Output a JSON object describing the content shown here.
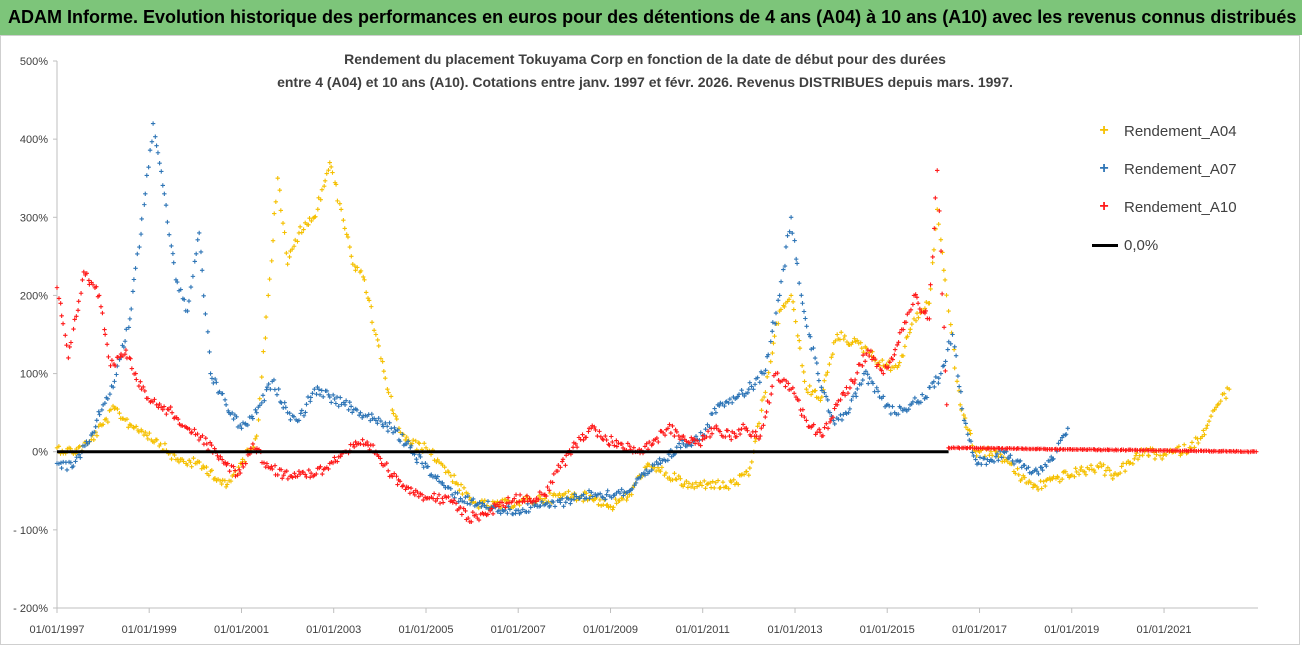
{
  "header": {
    "banner_title": "ADAM Informe. Evolution historique des performances en euros pour des détentions de 4 ans (A04) à 10 ans (A10) avec les revenus connus distribués"
  },
  "chart_data": {
    "type": "scatter",
    "title_line1": "Rendement du placement Tokuyama Corp en fonction de la date de début pour des durées",
    "title_line2": "entre 4 (A04) et 10 ans (A10). Cotations entre janv. 1997 et févr. 2026. Revenus DISTRIBUES depuis mars. 1997.",
    "xlim": [
      "1997-01-01",
      "2023-01-15"
    ],
    "ylim": [
      -200,
      500
    ],
    "y_ticks": [
      -200,
      -100,
      0,
      100,
      200,
      300,
      400,
      500
    ],
    "y_tick_labels": [
      "- 200%",
      "- 100%",
      "0%",
      "100%",
      "200%",
      "300%",
      "400%",
      "500%"
    ],
    "x_tick_labels": [
      "01/01/1997",
      "01/01/1999",
      "01/01/2001",
      "01/01/2003",
      "01/01/2005",
      "01/01/2007",
      "01/01/2009",
      "01/01/2011",
      "01/01/2013",
      "01/01/2015",
      "01/01/2017",
      "01/01/2019",
      "01/01/2021"
    ],
    "grid": false,
    "legend_position": "top-right",
    "series": [
      {
        "name": "Rendement_A04",
        "color": "#f5c000",
        "marker": "+",
        "points": [
          [
            "1997-01-01",
            5
          ],
          [
            "1997-05-01",
            0
          ],
          [
            "1997-09-01",
            10
          ],
          [
            "1998-01-01",
            35
          ],
          [
            "1998-04-01",
            55
          ],
          [
            "1998-08-01",
            35
          ],
          [
            "1998-12-01",
            25
          ],
          [
            "1999-04-01",
            10
          ],
          [
            "1999-08-01",
            -10
          ],
          [
            "2000-01-01",
            -15
          ],
          [
            "2000-05-01",
            -25
          ],
          [
            "2000-09-01",
            -45
          ],
          [
            "2001-01-01",
            -15
          ],
          [
            "2001-05-01",
            20
          ],
          [
            "2001-08-01",
            200
          ],
          [
            "2001-10-15",
            350
          ],
          [
            "2002-01-01",
            240
          ],
          [
            "2002-04-01",
            280
          ],
          [
            "2002-08-01",
            300
          ],
          [
            "2002-12-01",
            370
          ],
          [
            "2003-03-01",
            310
          ],
          [
            "2003-06-01",
            240
          ],
          [
            "2003-09-01",
            220
          ],
          [
            "2003-12-01",
            150
          ],
          [
            "2004-03-01",
            80
          ],
          [
            "2004-06-01",
            30
          ],
          [
            "2004-09-01",
            10
          ],
          [
            "2005-01-01",
            5
          ],
          [
            "2005-05-01",
            -15
          ],
          [
            "2005-09-01",
            -40
          ],
          [
            "2006-01-01",
            -65
          ],
          [
            "2006-06-01",
            -70
          ],
          [
            "2007-01-01",
            -65
          ],
          [
            "2007-08-01",
            -60
          ],
          [
            "2008-03-01",
            -55
          ],
          [
            "2008-09-01",
            -60
          ],
          [
            "2009-01-01",
            -70
          ],
          [
            "2009-06-01",
            -55
          ],
          [
            "2009-10-01",
            -20
          ],
          [
            "2010-02-01",
            -25
          ],
          [
            "2010-06-01",
            -35
          ],
          [
            "2010-10-01",
            -45
          ],
          [
            "2011-03-01",
            -40
          ],
          [
            "2011-07-01",
            -45
          ],
          [
            "2012-01-01",
            -30
          ],
          [
            "2012-05-01",
            70
          ],
          [
            "2012-09-01",
            180
          ],
          [
            "2012-12-01",
            200
          ],
          [
            "2013-04-01",
            80
          ],
          [
            "2013-08-01",
            70
          ],
          [
            "2013-12-01",
            150
          ],
          [
            "2014-04-01",
            140
          ],
          [
            "2014-08-01",
            130
          ],
          [
            "2014-12-01",
            110
          ],
          [
            "2015-04-01",
            110
          ],
          [
            "2015-08-01",
            170
          ],
          [
            "2015-12-01",
            190
          ],
          [
            "2016-02-01",
            310
          ],
          [
            "2016-05-01",
            180
          ],
          [
            "2016-08-01",
            60
          ],
          [
            "2016-12-01",
            0
          ],
          [
            "2017-04-01",
            0
          ],
          [
            "2017-08-01",
            -10
          ],
          [
            "2017-12-01",
            -35
          ],
          [
            "2018-04-01",
            -45
          ],
          [
            "2018-08-01",
            -35
          ],
          [
            "2018-12-01",
            -30
          ],
          [
            "2019-04-01",
            -25
          ],
          [
            "2019-08-01",
            -20
          ],
          [
            "2019-12-01",
            -30
          ],
          [
            "2020-04-01",
            -15
          ],
          [
            "2020-08-01",
            0
          ],
          [
            "2020-12-01",
            -5
          ],
          [
            "2021-04-01",
            0
          ],
          [
            "2021-08-01",
            5
          ],
          [
            "2021-12-01",
            30
          ],
          [
            "2022-03-01",
            60
          ],
          [
            "2022-06-01",
            80
          ]
        ]
      },
      {
        "name": "Rendement_A07",
        "color": "#2e75b6",
        "marker": "+",
        "points": [
          [
            "1997-01-01",
            -15
          ],
          [
            "1997-05-01",
            -20
          ],
          [
            "1997-09-01",
            10
          ],
          [
            "1998-01-01",
            60
          ],
          [
            "1998-04-01",
            90
          ],
          [
            "1998-08-01",
            170
          ],
          [
            "1998-12-01",
            330
          ],
          [
            "1999-02-01",
            420
          ],
          [
            "1999-05-01",
            330
          ],
          [
            "1999-08-01",
            220
          ],
          [
            "1999-11-01",
            180
          ],
          [
            "2000-02-01",
            280
          ],
          [
            "2000-05-01",
            100
          ],
          [
            "2000-09-01",
            60
          ],
          [
            "2001-01-01",
            30
          ],
          [
            "2001-05-01",
            50
          ],
          [
            "2001-09-01",
            90
          ],
          [
            "2002-01-01",
            50
          ],
          [
            "2002-04-01",
            40
          ],
          [
            "2002-08-01",
            80
          ],
          [
            "2002-12-01",
            70
          ],
          [
            "2003-04-01",
            60
          ],
          [
            "2003-08-01",
            50
          ],
          [
            "2003-12-01",
            40
          ],
          [
            "2004-04-01",
            30
          ],
          [
            "2004-08-01",
            10
          ],
          [
            "2004-12-01",
            -15
          ],
          [
            "2005-05-01",
            -40
          ],
          [
            "2005-10-01",
            -60
          ],
          [
            "2006-03-01",
            -65
          ],
          [
            "2006-08-01",
            -75
          ],
          [
            "2007-01-01",
            -75
          ],
          [
            "2007-06-01",
            -70
          ],
          [
            "2007-12-01",
            -65
          ],
          [
            "2008-06-01",
            -55
          ],
          [
            "2008-12-01",
            -55
          ],
          [
            "2009-06-01",
            -50
          ],
          [
            "2009-10-01",
            -30
          ],
          [
            "2010-03-01",
            -10
          ],
          [
            "2010-08-01",
            10
          ],
          [
            "2011-01-01",
            20
          ],
          [
            "2011-05-01",
            60
          ],
          [
            "2011-09-01",
            70
          ],
          [
            "2012-01-01",
            80
          ],
          [
            "2012-05-01",
            100
          ],
          [
            "2012-09-01",
            200
          ],
          [
            "2012-12-01",
            300
          ],
          [
            "2013-03-01",
            190
          ],
          [
            "2013-07-01",
            100
          ],
          [
            "2013-11-01",
            40
          ],
          [
            "2014-03-01",
            50
          ],
          [
            "2014-07-01",
            100
          ],
          [
            "2014-11-01",
            70
          ],
          [
            "2015-03-01",
            50
          ],
          [
            "2015-07-01",
            60
          ],
          [
            "2015-11-01",
            70
          ],
          [
            "2016-03-01",
            100
          ],
          [
            "2016-06-01",
            150
          ],
          [
            "2016-09-01",
            40
          ],
          [
            "2016-12-01",
            -10
          ],
          [
            "2017-04-01",
            -10
          ],
          [
            "2017-08-01",
            0
          ],
          [
            "2017-12-01",
            -20
          ],
          [
            "2018-04-01",
            -25
          ],
          [
            "2018-08-01",
            -10
          ],
          [
            "2018-12-01",
            30
          ]
        ]
      },
      {
        "name": "Rendement_A10",
        "color": "#ff1a1a",
        "marker": "+",
        "points": [
          [
            "1997-01-01",
            210
          ],
          [
            "1997-04-01",
            120
          ],
          [
            "1997-08-01",
            230
          ],
          [
            "1997-12-01",
            200
          ],
          [
            "1998-03-01",
            110
          ],
          [
            "1998-07-01",
            130
          ],
          [
            "1998-11-01",
            80
          ],
          [
            "1999-03-01",
            60
          ],
          [
            "1999-07-01",
            50
          ],
          [
            "1999-11-01",
            30
          ],
          [
            "2000-04-01",
            10
          ],
          [
            "2000-08-01",
            -10
          ],
          [
            "2000-12-01",
            -30
          ],
          [
            "2001-04-01",
            10
          ],
          [
            "2001-08-01",
            -20
          ],
          [
            "2001-12-01",
            -30
          ],
          [
            "2002-04-01",
            -25
          ],
          [
            "2002-08-01",
            -30
          ],
          [
            "2002-12-01",
            -15
          ],
          [
            "2003-04-01",
            0
          ],
          [
            "2003-08-01",
            10
          ],
          [
            "2003-12-01",
            0
          ],
          [
            "2004-04-01",
            -30
          ],
          [
            "2004-08-01",
            -45
          ],
          [
            "2004-12-01",
            -55
          ],
          [
            "2005-04-01",
            -60
          ],
          [
            "2005-08-01",
            -65
          ],
          [
            "2005-12-01",
            -85
          ],
          [
            "2006-04-01",
            -80
          ],
          [
            "2006-08-01",
            -70
          ],
          [
            "2006-12-01",
            -60
          ],
          [
            "2007-04-01",
            -60
          ],
          [
            "2007-08-01",
            -55
          ],
          [
            "2007-12-01",
            -20
          ],
          [
            "2008-04-01",
            10
          ],
          [
            "2008-08-01",
            30
          ],
          [
            "2008-12-01",
            15
          ],
          [
            "2009-04-01",
            10
          ],
          [
            "2009-08-01",
            0
          ],
          [
            "2009-12-01",
            10
          ],
          [
            "2010-04-01",
            30
          ],
          [
            "2010-08-01",
            20
          ],
          [
            "2010-12-01",
            10
          ],
          [
            "2011-04-01",
            30
          ],
          [
            "2011-08-01",
            20
          ],
          [
            "2011-12-01",
            30
          ],
          [
            "2012-04-01",
            20
          ],
          [
            "2012-08-01",
            100
          ],
          [
            "2012-12-01",
            80
          ],
          [
            "2013-04-01",
            40
          ],
          [
            "2013-08-01",
            20
          ],
          [
            "2013-12-01",
            60
          ],
          [
            "2014-04-01",
            90
          ],
          [
            "2014-08-01",
            130
          ],
          [
            "2014-12-01",
            100
          ],
          [
            "2015-04-01",
            140
          ],
          [
            "2015-08-01",
            200
          ],
          [
            "2015-12-01",
            170
          ],
          [
            "2016-02-01",
            360
          ],
          [
            "2016-05-01",
            5
          ],
          [
            "2023-01-01",
            0
          ]
        ]
      },
      {
        "name": "0,0%",
        "color": "#000000",
        "type": "line",
        "points": [
          [
            "1997-01-01",
            0
          ],
          [
            "2016-05-01",
            0
          ]
        ]
      }
    ]
  }
}
